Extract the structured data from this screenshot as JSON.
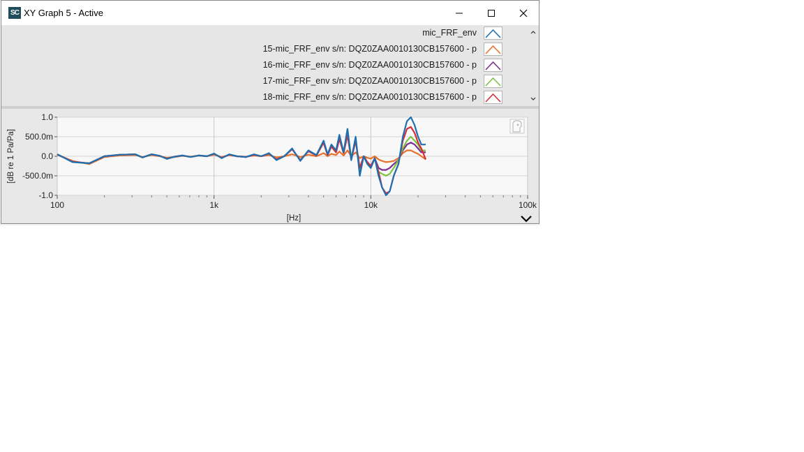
{
  "window": {
    "title": "XY Graph 5 - Active",
    "app_icon_text": "SC"
  },
  "legend": {
    "entries": [
      {
        "label": "mic_FRF_env",
        "color": "#1f6fb0"
      },
      {
        "label": "15-mic_FRF_env s/n: DQZ0ZAA0010130CB157600 - p",
        "color": "#e8702a"
      },
      {
        "label": "16-mic_FRF_env s/n: DQZ0ZAA0010130CB157600 - p",
        "color": "#7b2e8e"
      },
      {
        "label": "17-mic_FRF_env s/n: DQZ0ZAA0010130CB157600 - p",
        "color": "#7dc242"
      },
      {
        "label": "18-mic_FRF_env s/n: DQZ0ZAA0010130CB157600 - p",
        "color": "#d62c36"
      }
    ]
  },
  "chart_data": {
    "type": "line",
    "xlabel": "[Hz]",
    "ylabel": "[dB re 1 Pa/Pa]",
    "xscale": "log",
    "xlim": [
      100,
      100000
    ],
    "ylim": [
      -1.0,
      1.0
    ],
    "x_ticks": [
      "100",
      "1k",
      "10k",
      "100k"
    ],
    "y_ticks": [
      "1.0",
      "500.0m",
      "0.0",
      "-500.0m",
      "-1.0"
    ],
    "grid": true,
    "series": [
      {
        "name": "mic_FRF_env",
        "color": "#1f6fb0",
        "x": [
          100,
          125,
          160,
          200,
          250,
          315,
          350,
          400,
          450,
          500,
          560,
          630,
          710,
          800,
          900,
          1000,
          1120,
          1250,
          1400,
          1600,
          1800,
          2000,
          2240,
          2500,
          2800,
          3150,
          3550,
          4000,
          4500,
          5000,
          5300,
          5600,
          6000,
          6300,
          6700,
          7100,
          7500,
          8000,
          8500,
          9000,
          9500,
          10000,
          10600,
          11200,
          11800,
          12500,
          13200,
          14000,
          15000,
          16000,
          17000,
          18000,
          19000,
          20000,
          21000,
          22400
        ],
        "y": [
          0.05,
          -0.15,
          -0.18,
          0.0,
          0.04,
          0.05,
          -0.03,
          0.05,
          0.01,
          -0.07,
          -0.01,
          0.02,
          -0.02,
          0.02,
          0.0,
          0.07,
          -0.05,
          0.05,
          0.0,
          -0.02,
          0.05,
          0.0,
          0.08,
          -0.1,
          0.0,
          0.2,
          -0.12,
          0.15,
          0.03,
          0.4,
          0.05,
          0.3,
          0.15,
          0.55,
          0.1,
          0.7,
          -0.1,
          0.5,
          -0.5,
          0.0,
          -0.2,
          -0.3,
          -0.05,
          -0.5,
          -0.8,
          -1.0,
          -0.9,
          -0.5,
          -0.2,
          0.5,
          0.9,
          1.0,
          0.8,
          0.5,
          0.3,
          0.3
        ]
      },
      {
        "name": "15-mic_FRF_env s/n: DQZ0ZAA0010130CB157600 - p",
        "color": "#e8702a",
        "x": [
          100,
          125,
          160,
          200,
          250,
          315,
          350,
          400,
          450,
          500,
          560,
          630,
          710,
          800,
          900,
          1000,
          1120,
          1250,
          1400,
          1600,
          1800,
          2000,
          2240,
          2500,
          2800,
          3150,
          3550,
          4000,
          4500,
          5000,
          5300,
          5600,
          6000,
          6300,
          6700,
          7100,
          7500,
          8000,
          8500,
          9000,
          9500,
          10000,
          10600,
          11200,
          11800,
          12500,
          13200,
          14000,
          15000,
          16000,
          17000,
          18000,
          19000,
          20000,
          21000,
          22400
        ],
        "y": [
          0.04,
          -0.12,
          -0.2,
          -0.02,
          0.02,
          0.03,
          -0.02,
          0.03,
          0.0,
          -0.04,
          -0.02,
          0.01,
          -0.01,
          0.02,
          0.0,
          0.04,
          -0.02,
          0.03,
          0.0,
          -0.01,
          0.02,
          0.0,
          0.03,
          -0.03,
          0.0,
          0.05,
          -0.02,
          0.04,
          0.0,
          0.08,
          0.0,
          0.06,
          0.03,
          0.12,
          0.02,
          0.15,
          0.0,
          0.1,
          -0.05,
          0.0,
          -0.04,
          -0.06,
          0.0,
          -0.08,
          -0.12,
          -0.15,
          -0.14,
          -0.12,
          -0.05,
          0.08,
          0.15,
          0.15,
          0.1,
          0.06,
          0.0,
          -0.08
        ]
      },
      {
        "name": "16-mic_FRF_env s/n: DQZ0ZAA0010130CB157600 - p",
        "color": "#7b2e8e",
        "x": [
          100,
          125,
          160,
          200,
          250,
          315,
          350,
          400,
          450,
          500,
          560,
          630,
          710,
          800,
          900,
          1000,
          1120,
          1250,
          1400,
          1600,
          1800,
          2000,
          2240,
          2500,
          2800,
          3150,
          3550,
          4000,
          4500,
          5000,
          5300,
          5600,
          6000,
          6300,
          6700,
          7100,
          7500,
          8000,
          8500,
          9000,
          9500,
          10000,
          10600,
          11200,
          11800,
          12500,
          13200,
          14000,
          15000,
          16000,
          17000,
          18000,
          19000,
          20000,
          21000,
          22400
        ],
        "y": [
          0.05,
          -0.14,
          -0.18,
          0.0,
          0.04,
          0.05,
          -0.03,
          0.05,
          0.01,
          -0.06,
          -0.01,
          0.02,
          -0.02,
          0.02,
          0.0,
          0.06,
          -0.04,
          0.04,
          0.0,
          -0.02,
          0.04,
          0.0,
          0.07,
          -0.08,
          0.0,
          0.18,
          -0.1,
          0.13,
          0.02,
          0.35,
          0.03,
          0.25,
          0.1,
          0.45,
          0.08,
          0.55,
          -0.08,
          0.4,
          -0.35,
          0.0,
          -0.15,
          -0.25,
          -0.05,
          -0.3,
          -0.35,
          -0.35,
          -0.3,
          -0.2,
          -0.1,
          0.15,
          0.3,
          0.35,
          0.3,
          0.2,
          0.1,
          0.1
        ]
      },
      {
        "name": "17-mic_FRF_env s/n: DQZ0ZAA0010130CB157600 - p",
        "color": "#7dc242",
        "x": [
          100,
          125,
          160,
          200,
          250,
          315,
          350,
          400,
          450,
          500,
          560,
          630,
          710,
          800,
          900,
          1000,
          1120,
          1250,
          1400,
          1600,
          1800,
          2000,
          2240,
          2500,
          2800,
          3150,
          3550,
          4000,
          4500,
          5000,
          5300,
          5600,
          6000,
          6300,
          6700,
          7100,
          7500,
          8000,
          8500,
          9000,
          9500,
          10000,
          10600,
          11200,
          11800,
          12500,
          13200,
          14000,
          15000,
          16000,
          17000,
          18000,
          19000,
          20000,
          21000,
          22400
        ],
        "y": [
          0.05,
          -0.14,
          -0.18,
          0.0,
          0.04,
          0.05,
          -0.03,
          0.05,
          0.01,
          -0.06,
          -0.01,
          0.02,
          -0.02,
          0.02,
          0.0,
          0.06,
          -0.04,
          0.04,
          0.0,
          -0.02,
          0.04,
          0.0,
          0.07,
          -0.08,
          0.0,
          0.18,
          -0.1,
          0.13,
          0.02,
          0.35,
          0.03,
          0.25,
          0.1,
          0.5,
          0.1,
          0.7,
          -0.05,
          0.45,
          -0.4,
          0.0,
          -0.18,
          -0.3,
          -0.05,
          -0.4,
          -0.45,
          -0.5,
          -0.45,
          -0.3,
          -0.1,
          0.2,
          0.4,
          0.5,
          0.4,
          0.3,
          0.15,
          0.15
        ]
      },
      {
        "name": "18-mic_FRF_env s/n: DQZ0ZAA0010130CB157600 - p",
        "color": "#d62c36",
        "x": [
          100,
          125,
          160,
          200,
          250,
          315,
          350,
          400,
          450,
          500,
          560,
          630,
          710,
          800,
          900,
          1000,
          1120,
          1250,
          1400,
          1600,
          1800,
          2000,
          2240,
          2500,
          2800,
          3150,
          3550,
          4000,
          4500,
          5000,
          5300,
          5600,
          6000,
          6300,
          6700,
          7100,
          7500,
          8000,
          8500,
          9000,
          9500,
          10000,
          10600,
          11200,
          11800,
          12500,
          13200,
          14000,
          15000,
          16000,
          17000,
          18000,
          19000,
          20000,
          21000,
          22400
        ],
        "y": [
          0.05,
          -0.14,
          -0.18,
          0.0,
          0.04,
          0.05,
          -0.03,
          0.05,
          0.01,
          -0.06,
          -0.01,
          0.02,
          -0.02,
          0.02,
          0.0,
          0.06,
          -0.04,
          0.04,
          0.0,
          -0.02,
          0.04,
          0.0,
          0.07,
          -0.08,
          0.0,
          0.18,
          -0.1,
          0.13,
          0.02,
          0.35,
          0.03,
          0.25,
          0.1,
          0.45,
          0.08,
          0.55,
          -0.08,
          0.4,
          -0.3,
          0.0,
          -0.15,
          -0.25,
          -0.05,
          -0.4,
          -0.8,
          -0.95,
          -0.9,
          -0.5,
          -0.2,
          0.4,
          0.7,
          0.75,
          0.6,
          0.35,
          0.2,
          -0.08
        ]
      }
    ]
  }
}
